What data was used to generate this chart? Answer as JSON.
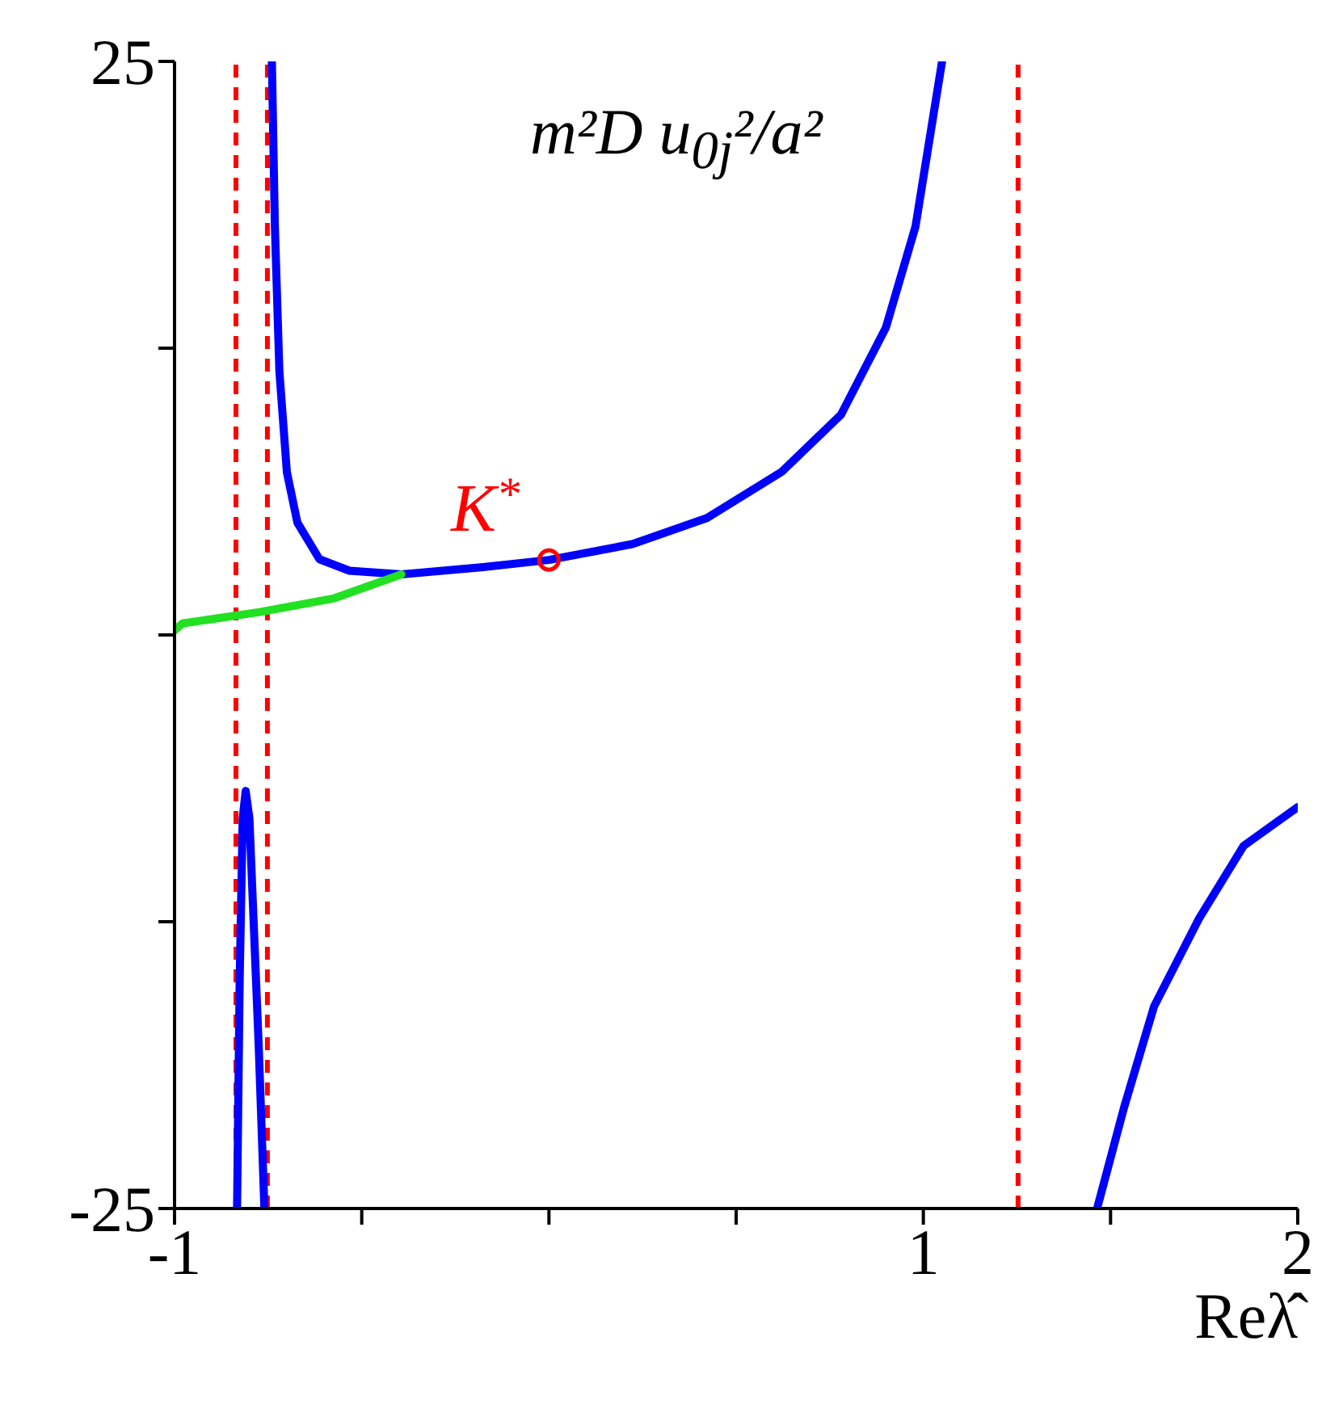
{
  "chart_data": {
    "type": "line",
    "xlabel": "Reλ̂",
    "ylabel": "m²D u$_{0j}$²/a²",
    "xlim": [
      -1,
      2
    ],
    "ylim": [
      -25,
      25
    ],
    "xticks": [
      {
        "value": -1,
        "label": "-1"
      },
      {
        "value": -0.5,
        "label": null
      },
      {
        "value": 0,
        "label": null
      },
      {
        "value": 0.5,
        "label": null
      },
      1,
      {
        "value": 1.5,
        "label": null
      },
      2
    ],
    "yticks": [
      {
        "value": -25,
        "label": "-25"
      },
      {
        "value": -12.5,
        "label": null
      },
      {
        "value": 0,
        "label": null
      },
      {
        "value": 12.5,
        "label": null
      },
      25
    ],
    "grid": false,
    "marker": "none",
    "line_style": "solid",
    "series": [
      {
        "color": "#0000ff",
        "x": [
          -0.74,
          -0.732,
          -0.72,
          -0.7,
          -0.672,
          -0.613,
          -0.533,
          -0.394,
          -0.175,
          0,
          0.223,
          0.422,
          0.621,
          0.78,
          0.9,
          0.979,
          1.05
        ],
        "values": [
          25,
          17.8,
          11.5,
          7.1,
          4.9,
          3.3,
          2.8,
          2.64,
          2.96,
          3.27,
          3.96,
          5.1,
          7.1,
          9.6,
          13.4,
          17.8,
          25
        ]
      },
      {
        "color": "#22e022",
        "x": [
          -1,
          -0.979,
          -0.772,
          -0.573,
          -0.394
        ],
        "values": [
          0.2,
          0.5,
          1.0,
          1.6,
          2.64
        ]
      },
      {
        "color": "#0000ff",
        "x": [
          -0.833,
          -0.826,
          -0.818,
          -0.81,
          -0.8,
          -0.79,
          -0.775,
          -0.76
        ],
        "values": [
          -25,
          -15,
          -8,
          -6.8,
          -8,
          -12,
          -18,
          -25
        ]
      },
      {
        "color": "#0000ff",
        "x": [
          1.464,
          1.536,
          1.616,
          1.735,
          1.855,
          2.0
        ],
        "values": [
          -25,
          -20.6,
          -16.2,
          -12.4,
          -9.2,
          -7.5
        ]
      },
      {
        "type": "scatter",
        "color": "#ff0000",
        "marker": "circle",
        "x": [
          0
        ],
        "values": [
          3.27
        ]
      }
    ],
    "ref_lines": [
      {
        "axis": "x",
        "value": -0.836,
        "color": "#ff0000",
        "line_style": "dashed"
      },
      {
        "axis": "x",
        "value": -0.752,
        "color": "#ff0000",
        "line_style": "dashed"
      },
      {
        "axis": "x",
        "value": 1.253,
        "color": "#ff0000",
        "line_style": "dashed"
      }
    ],
    "annotations": [
      {
        "text": "K$^{*}$",
        "x": 0,
        "y": 3.27
      }
    ]
  }
}
